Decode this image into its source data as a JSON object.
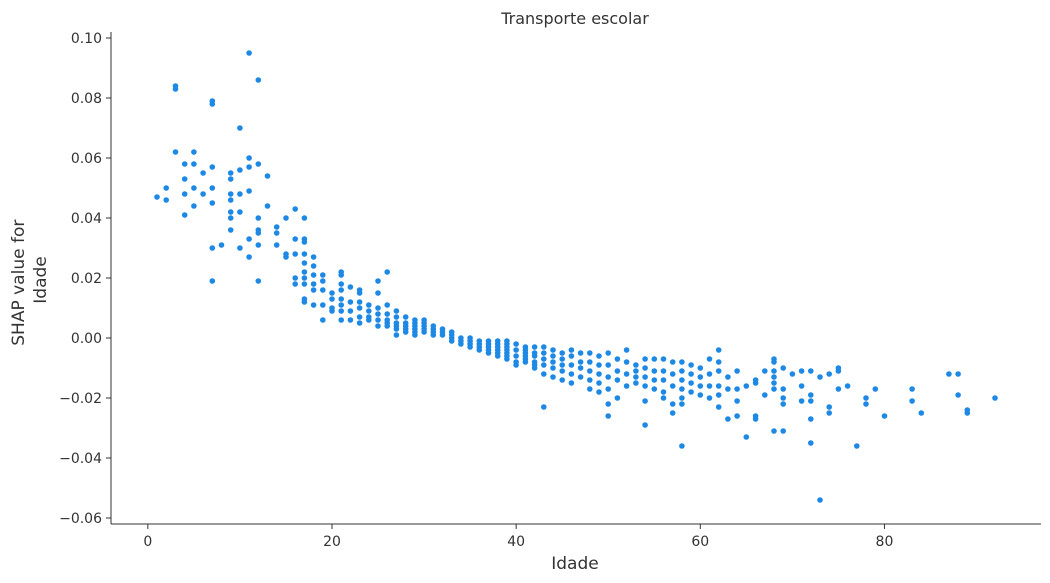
{
  "chart_data": {
    "type": "scatter",
    "title": "Transporte escolar",
    "xlabel": "Idade",
    "ylabel_lines": [
      "SHAP value for",
      "Idade"
    ],
    "xlim": [
      -4,
      97
    ],
    "ylim": [
      -0.062,
      0.102
    ],
    "xticks": [
      0,
      20,
      40,
      60,
      80
    ],
    "xtick_labels": [
      "0",
      "20",
      "40",
      "60",
      "80"
    ],
    "yticks": [
      0.1,
      0.08,
      0.06,
      0.04,
      0.02,
      0.0,
      -0.02,
      -0.04,
      -0.06
    ],
    "ytick_labels": [
      "0.10",
      "0.08",
      "0.06",
      "0.04",
      "0.02",
      "0.00",
      "−0.02",
      "−0.04",
      "−0.06"
    ],
    "grid": false,
    "point_color": "#1E88E5",
    "points": [
      [
        1,
        0.047
      ],
      [
        2,
        0.05
      ],
      [
        2,
        0.046
      ],
      [
        3,
        0.084
      ],
      [
        3,
        0.083
      ],
      [
        3,
        0.062
      ],
      [
        4,
        0.058
      ],
      [
        4,
        0.053
      ],
      [
        4,
        0.048
      ],
      [
        4,
        0.041
      ],
      [
        5,
        0.062
      ],
      [
        5,
        0.058
      ],
      [
        5,
        0.05
      ],
      [
        5,
        0.044
      ],
      [
        6,
        0.055
      ],
      [
        6,
        0.048
      ],
      [
        7,
        0.079
      ],
      [
        7,
        0.078
      ],
      [
        7,
        0.057
      ],
      [
        7,
        0.05
      ],
      [
        7,
        0.045
      ],
      [
        7,
        0.03
      ],
      [
        7,
        0.019
      ],
      [
        8,
        0.031
      ],
      [
        9,
        0.055
      ],
      [
        9,
        0.053
      ],
      [
        9,
        0.048
      ],
      [
        9,
        0.046
      ],
      [
        9,
        0.042
      ],
      [
        9,
        0.04
      ],
      [
        9,
        0.036
      ],
      [
        10,
        0.07
      ],
      [
        10,
        0.056
      ],
      [
        10,
        0.048
      ],
      [
        10,
        0.042
      ],
      [
        10,
        0.03
      ],
      [
        11,
        0.095
      ],
      [
        11,
        0.06
      ],
      [
        11,
        0.057
      ],
      [
        11,
        0.049
      ],
      [
        11,
        0.033
      ],
      [
        11,
        0.027
      ],
      [
        12,
        0.086
      ],
      [
        12,
        0.058
      ],
      [
        12,
        0.04
      ],
      [
        12,
        0.036
      ],
      [
        12,
        0.035
      ],
      [
        12,
        0.031
      ],
      [
        12,
        0.019
      ],
      [
        13,
        0.054
      ],
      [
        13,
        0.044
      ],
      [
        14,
        0.037
      ],
      [
        14,
        0.035
      ],
      [
        14,
        0.031
      ],
      [
        15,
        0.04
      ],
      [
        15,
        0.028
      ],
      [
        15,
        0.027
      ],
      [
        16,
        0.043
      ],
      [
        16,
        0.033
      ],
      [
        16,
        0.028
      ],
      [
        16,
        0.02
      ],
      [
        16,
        0.018
      ],
      [
        17,
        0.04
      ],
      [
        17,
        0.033
      ],
      [
        17,
        0.032
      ],
      [
        17,
        0.028
      ],
      [
        17,
        0.025
      ],
      [
        17,
        0.022
      ],
      [
        17,
        0.02
      ],
      [
        17,
        0.018
      ],
      [
        17,
        0.013
      ],
      [
        17,
        0.012
      ],
      [
        18,
        0.027
      ],
      [
        18,
        0.024
      ],
      [
        18,
        0.021
      ],
      [
        18,
        0.018
      ],
      [
        18,
        0.016
      ],
      [
        18,
        0.011
      ],
      [
        19,
        0.021
      ],
      [
        19,
        0.019
      ],
      [
        19,
        0.016
      ],
      [
        19,
        0.011
      ],
      [
        19,
        0.006
      ],
      [
        20,
        0.015
      ],
      [
        20,
        0.013
      ],
      [
        20,
        0.01
      ],
      [
        20,
        0.009
      ],
      [
        21,
        0.022
      ],
      [
        21,
        0.021
      ],
      [
        21,
        0.018
      ],
      [
        21,
        0.016
      ],
      [
        21,
        0.013
      ],
      [
        21,
        0.011
      ],
      [
        21,
        0.009
      ],
      [
        21,
        0.006
      ],
      [
        22,
        0.017
      ],
      [
        22,
        0.012
      ],
      [
        22,
        0.009
      ],
      [
        22,
        0.006
      ],
      [
        23,
        0.016
      ],
      [
        23,
        0.015
      ],
      [
        23,
        0.012
      ],
      [
        23,
        0.01
      ],
      [
        23,
        0.007
      ],
      [
        23,
        0.005
      ],
      [
        24,
        0.011
      ],
      [
        24,
        0.009
      ],
      [
        24,
        0.007
      ],
      [
        24,
        0.006
      ],
      [
        25,
        0.019
      ],
      [
        25,
        0.015
      ],
      [
        25,
        0.01
      ],
      [
        25,
        0.008
      ],
      [
        25,
        0.006
      ],
      [
        25,
        0.004
      ],
      [
        26,
        0.022
      ],
      [
        26,
        0.011
      ],
      [
        26,
        0.008
      ],
      [
        26,
        0.006
      ],
      [
        26,
        0.005
      ],
      [
        26,
        0.004
      ],
      [
        27,
        0.009
      ],
      [
        27,
        0.007
      ],
      [
        27,
        0.005
      ],
      [
        27,
        0.004
      ],
      [
        27,
        0.003
      ],
      [
        27,
        0.001
      ],
      [
        28,
        0.007
      ],
      [
        28,
        0.005
      ],
      [
        28,
        0.004
      ],
      [
        28,
        0.003
      ],
      [
        28,
        0.002
      ],
      [
        29,
        0.006
      ],
      [
        29,
        0.005
      ],
      [
        29,
        0.004
      ],
      [
        29,
        0.003
      ],
      [
        29,
        0.002
      ],
      [
        29,
        0.001
      ],
      [
        30,
        0.006
      ],
      [
        30,
        0.005
      ],
      [
        30,
        0.004
      ],
      [
        30,
        0.003
      ],
      [
        30,
        0.002
      ],
      [
        31,
        0.004
      ],
      [
        31,
        0.003
      ],
      [
        31,
        0.002
      ],
      [
        31,
        0.001
      ],
      [
        32,
        0.003
      ],
      [
        32,
        0.002
      ],
      [
        32,
        0.001
      ],
      [
        33,
        0.002
      ],
      [
        33,
        0.001
      ],
      [
        33,
        0.0
      ],
      [
        33,
        -0.001
      ],
      [
        34,
        0.0
      ],
      [
        34,
        -0.001
      ],
      [
        34,
        -0.002
      ],
      [
        35,
        0.0
      ],
      [
        35,
        -0.001
      ],
      [
        35,
        -0.002
      ],
      [
        35,
        -0.003
      ],
      [
        36,
        -0.001
      ],
      [
        36,
        -0.002
      ],
      [
        36,
        -0.003
      ],
      [
        36,
        -0.004
      ],
      [
        37,
        -0.001
      ],
      [
        37,
        -0.002
      ],
      [
        37,
        -0.003
      ],
      [
        37,
        -0.004
      ],
      [
        37,
        -0.005
      ],
      [
        38,
        -0.001
      ],
      [
        38,
        -0.002
      ],
      [
        38,
        -0.003
      ],
      [
        38,
        -0.004
      ],
      [
        38,
        -0.005
      ],
      [
        38,
        -0.006
      ],
      [
        39,
        -0.001
      ],
      [
        39,
        -0.002
      ],
      [
        39,
        -0.003
      ],
      [
        39,
        -0.004
      ],
      [
        39,
        -0.005
      ],
      [
        39,
        -0.006
      ],
      [
        39,
        -0.007
      ],
      [
        40,
        -0.002
      ],
      [
        40,
        -0.004
      ],
      [
        40,
        -0.006
      ],
      [
        40,
        -0.008
      ],
      [
        40,
        -0.009
      ],
      [
        41,
        -0.003
      ],
      [
        41,
        -0.004
      ],
      [
        41,
        -0.005
      ],
      [
        41,
        -0.006
      ],
      [
        41,
        -0.007
      ],
      [
        41,
        -0.008
      ],
      [
        42,
        -0.003
      ],
      [
        42,
        -0.005
      ],
      [
        42,
        -0.006
      ],
      [
        42,
        -0.008
      ],
      [
        42,
        -0.009
      ],
      [
        42,
        -0.01
      ],
      [
        43,
        -0.003
      ],
      [
        43,
        -0.005
      ],
      [
        43,
        -0.007
      ],
      [
        43,
        -0.009
      ],
      [
        43,
        -0.012
      ],
      [
        43,
        -0.023
      ],
      [
        44,
        -0.004
      ],
      [
        44,
        -0.006
      ],
      [
        44,
        -0.008
      ],
      [
        44,
        -0.01
      ],
      [
        44,
        -0.013
      ],
      [
        45,
        -0.005
      ],
      [
        45,
        -0.007
      ],
      [
        45,
        -0.009
      ],
      [
        45,
        -0.011
      ],
      [
        45,
        -0.014
      ],
      [
        46,
        -0.004
      ],
      [
        46,
        -0.006
      ],
      [
        46,
        -0.009
      ],
      [
        46,
        -0.012
      ],
      [
        46,
        -0.015
      ],
      [
        47,
        -0.005
      ],
      [
        47,
        -0.008
      ],
      [
        47,
        -0.01
      ],
      [
        47,
        -0.013
      ],
      [
        48,
        -0.005
      ],
      [
        48,
        -0.008
      ],
      [
        48,
        -0.011
      ],
      [
        48,
        -0.014
      ],
      [
        48,
        -0.017
      ],
      [
        49,
        -0.006
      ],
      [
        49,
        -0.009
      ],
      [
        49,
        -0.012
      ],
      [
        49,
        -0.015
      ],
      [
        49,
        -0.018
      ],
      [
        50,
        -0.005
      ],
      [
        50,
        -0.009
      ],
      [
        50,
        -0.013
      ],
      [
        50,
        -0.017
      ],
      [
        50,
        -0.022
      ],
      [
        50,
        -0.026
      ],
      [
        51,
        -0.007
      ],
      [
        51,
        -0.011
      ],
      [
        51,
        -0.014
      ],
      [
        51,
        -0.02
      ],
      [
        52,
        -0.004
      ],
      [
        52,
        -0.008
      ],
      [
        52,
        -0.012
      ],
      [
        52,
        -0.016
      ],
      [
        53,
        -0.009
      ],
      [
        53,
        -0.011
      ],
      [
        53,
        -0.013
      ],
      [
        53,
        -0.015
      ],
      [
        54,
        -0.007
      ],
      [
        54,
        -0.01
      ],
      [
        54,
        -0.013
      ],
      [
        54,
        -0.016
      ],
      [
        54,
        -0.021
      ],
      [
        54,
        -0.029
      ],
      [
        55,
        -0.007
      ],
      [
        55,
        -0.011
      ],
      [
        55,
        -0.014
      ],
      [
        55,
        -0.017
      ],
      [
        56,
        -0.007
      ],
      [
        56,
        -0.011
      ],
      [
        56,
        -0.014
      ],
      [
        56,
        -0.018
      ],
      [
        56,
        -0.02
      ],
      [
        57,
        -0.008
      ],
      [
        57,
        -0.012
      ],
      [
        57,
        -0.016
      ],
      [
        57,
        -0.022
      ],
      [
        57,
        -0.025
      ],
      [
        58,
        -0.008
      ],
      [
        58,
        -0.011
      ],
      [
        58,
        -0.014
      ],
      [
        58,
        -0.017
      ],
      [
        58,
        -0.02
      ],
      [
        58,
        -0.022
      ],
      [
        58,
        -0.036
      ],
      [
        59,
        -0.009
      ],
      [
        59,
        -0.012
      ],
      [
        59,
        -0.015
      ],
      [
        59,
        -0.018
      ],
      [
        60,
        -0.01
      ],
      [
        60,
        -0.013
      ],
      [
        60,
        -0.016
      ],
      [
        60,
        -0.019
      ],
      [
        61,
        -0.007
      ],
      [
        61,
        -0.012
      ],
      [
        61,
        -0.016
      ],
      [
        61,
        -0.02
      ],
      [
        62,
        -0.004
      ],
      [
        62,
        -0.008
      ],
      [
        62,
        -0.011
      ],
      [
        62,
        -0.016
      ],
      [
        62,
        -0.019
      ],
      [
        62,
        -0.023
      ],
      [
        63,
        -0.013
      ],
      [
        63,
        -0.017
      ],
      [
        63,
        -0.027
      ],
      [
        64,
        -0.011
      ],
      [
        64,
        -0.017
      ],
      [
        64,
        -0.021
      ],
      [
        64,
        -0.026
      ],
      [
        65,
        -0.016
      ],
      [
        65,
        -0.033
      ],
      [
        66,
        -0.014
      ],
      [
        66,
        -0.015
      ],
      [
        66,
        -0.026
      ],
      [
        66,
        -0.027
      ],
      [
        67,
        -0.011
      ],
      [
        67,
        -0.019
      ],
      [
        68,
        -0.007
      ],
      [
        68,
        -0.008
      ],
      [
        68,
        -0.011
      ],
      [
        68,
        -0.013
      ],
      [
        68,
        -0.015
      ],
      [
        68,
        -0.017
      ],
      [
        68,
        -0.031
      ],
      [
        69,
        -0.01
      ],
      [
        69,
        -0.017
      ],
      [
        69,
        -0.02
      ],
      [
        69,
        -0.022
      ],
      [
        69,
        -0.031
      ],
      [
        70,
        -0.012
      ],
      [
        71,
        -0.011
      ],
      [
        71,
        -0.016
      ],
      [
        71,
        -0.021
      ],
      [
        72,
        -0.011
      ],
      [
        72,
        -0.019
      ],
      [
        72,
        -0.021
      ],
      [
        72,
        -0.027
      ],
      [
        72,
        -0.035
      ],
      [
        73,
        -0.013
      ],
      [
        73,
        -0.054
      ],
      [
        74,
        -0.012
      ],
      [
        74,
        -0.023
      ],
      [
        74,
        -0.025
      ],
      [
        75,
        -0.01
      ],
      [
        75,
        -0.011
      ],
      [
        75,
        -0.017
      ],
      [
        76,
        -0.016
      ],
      [
        77,
        -0.036
      ],
      [
        78,
        -0.02
      ],
      [
        78,
        -0.022
      ],
      [
        79,
        -0.017
      ],
      [
        80,
        -0.026
      ],
      [
        83,
        -0.017
      ],
      [
        83,
        -0.021
      ],
      [
        84,
        -0.025
      ],
      [
        87,
        -0.012
      ],
      [
        88,
        -0.012
      ],
      [
        88,
        -0.019
      ],
      [
        89,
        -0.024
      ],
      [
        89,
        -0.025
      ],
      [
        92,
        -0.02
      ]
    ]
  }
}
